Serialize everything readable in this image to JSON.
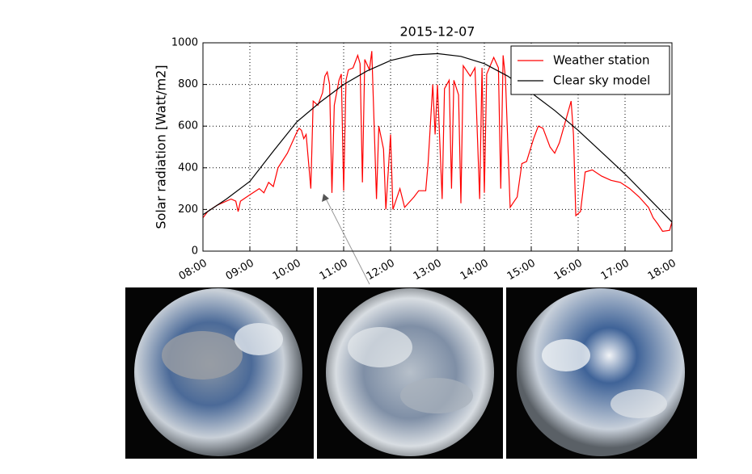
{
  "chart_data": {
    "type": "line",
    "title": "2015-12-07",
    "y_label": "Solar radiation [Watt/m2]",
    "xlim": [
      8,
      18
    ],
    "ylim": [
      0,
      1000
    ],
    "xticks": [
      {
        "value": 8,
        "label": "08:00"
      },
      {
        "value": 9,
        "label": "09:00"
      },
      {
        "value": 10,
        "label": "10:00"
      },
      {
        "value": 11,
        "label": "11:00"
      },
      {
        "value": 12,
        "label": "12:00"
      },
      {
        "value": 13,
        "label": "13:00"
      },
      {
        "value": 14,
        "label": "14:00"
      },
      {
        "value": 15,
        "label": "15:00"
      },
      {
        "value": 16,
        "label": "16:00"
      },
      {
        "value": 17,
        "label": "17:00"
      },
      {
        "value": 18,
        "label": "18:00"
      }
    ],
    "yticks": [
      0,
      200,
      400,
      600,
      800,
      1000
    ],
    "grid": true,
    "legend": "upper right",
    "series": [
      {
        "name": "Weather station",
        "color": "#ff0000",
        "x": [
          8.0,
          8.1,
          8.3,
          8.6,
          8.7,
          8.75,
          8.8,
          9.0,
          9.2,
          9.3,
          9.4,
          9.5,
          9.6,
          9.8,
          10.0,
          10.05,
          10.1,
          10.15,
          10.2,
          10.3,
          10.35,
          10.45,
          10.55,
          10.6,
          10.65,
          10.7,
          10.75,
          10.8,
          10.9,
          10.95,
          11.0,
          11.05,
          11.1,
          11.2,
          11.3,
          11.35,
          11.4,
          11.45,
          11.55,
          11.6,
          11.7,
          11.75,
          11.85,
          11.9,
          12.0,
          12.05,
          12.2,
          12.3,
          12.5,
          12.6,
          12.75,
          12.8,
          12.9,
          12.95,
          13.0,
          13.1,
          13.15,
          13.25,
          13.3,
          13.35,
          13.45,
          13.5,
          13.55,
          13.7,
          13.8,
          13.9,
          13.95,
          14.0,
          14.05,
          14.2,
          14.3,
          14.35,
          14.4,
          14.45,
          14.55,
          14.7,
          14.8,
          14.9,
          15.05,
          15.15,
          15.25,
          15.4,
          15.5,
          15.6,
          15.75,
          15.85,
          15.9,
          15.95,
          16.05,
          16.15,
          16.3,
          16.5,
          16.7,
          16.9,
          17.1,
          17.3,
          17.5,
          17.6,
          17.7,
          17.8,
          17.95,
          18.0
        ],
        "values": [
          160,
          190,
          220,
          250,
          240,
          190,
          240,
          270,
          300,
          280,
          330,
          310,
          400,
          470,
          570,
          590,
          580,
          540,
          560,
          300,
          720,
          700,
          760,
          840,
          860,
          800,
          280,
          700,
          820,
          850,
          290,
          820,
          870,
          880,
          940,
          900,
          330,
          920,
          870,
          960,
          250,
          600,
          490,
          200,
          560,
          200,
          300,
          210,
          260,
          290,
          290,
          420,
          800,
          560,
          800,
          250,
          780,
          820,
          300,
          820,
          750,
          230,
          890,
          840,
          880,
          250,
          880,
          280,
          850,
          930,
          880,
          300,
          940,
          830,
          210,
          260,
          420,
          430,
          540,
          600,
          590,
          500,
          470,
          520,
          640,
          720,
          560,
          170,
          190,
          380,
          390,
          360,
          340,
          330,
          300,
          260,
          210,
          160,
          130,
          95,
          100,
          140
        ]
      },
      {
        "name": "Clear sky model",
        "color": "#000000",
        "x": [
          8.0,
          8.5,
          9.0,
          9.5,
          10.0,
          10.5,
          11.0,
          11.5,
          12.0,
          12.5,
          13.0,
          13.5,
          14.0,
          14.5,
          15.0,
          15.5,
          16.0,
          16.5,
          17.0,
          17.5,
          18.0
        ],
        "values": [
          175,
          250,
          335,
          480,
          620,
          715,
          800,
          865,
          915,
          942,
          948,
          935,
          900,
          840,
          760,
          675,
          580,
          475,
          370,
          255,
          140
        ]
      }
    ]
  }
}
